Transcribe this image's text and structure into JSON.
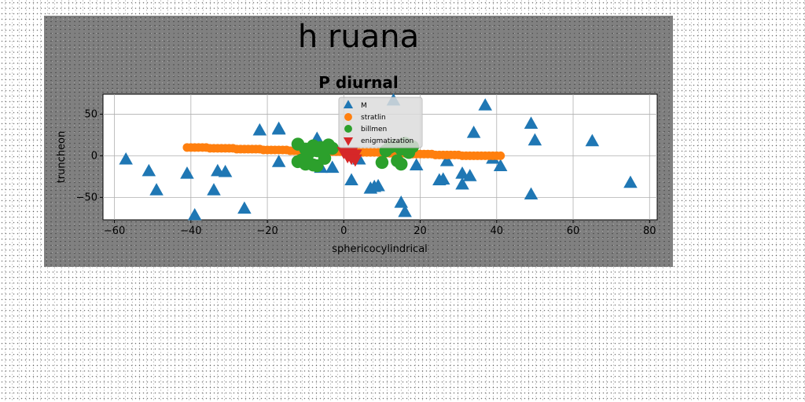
{
  "chart_data": {
    "type": "scatter",
    "suptitle": "h ruana",
    "title": "P  diurnal",
    "xlabel": "sphericocylindrical",
    "ylabel": "truncheon",
    "xlim": [
      -63,
      82
    ],
    "ylim": [
      -77,
      74
    ],
    "xticks": [
      -60,
      -40,
      -20,
      0,
      20,
      40,
      60,
      80
    ],
    "xtick_labels": [
      "−60",
      "−40",
      "−20",
      "0",
      "20",
      "40",
      "60",
      "80"
    ],
    "yticks": [
      -50,
      0,
      50
    ],
    "ytick_labels": [
      "−50",
      "0",
      "50"
    ],
    "grid": true,
    "legend_position": "top-center",
    "series": [
      {
        "name": "M",
        "marker": "triangle-up",
        "color": "#1f77b4",
        "x": [
          -57,
          -51,
          -49,
          -41,
          -39,
          -34,
          -33,
          -31,
          -26,
          -22,
          -17,
          -17,
          -17,
          -7,
          -6,
          -3,
          2,
          4,
          7,
          8,
          9,
          13,
          15,
          16,
          19,
          25,
          26,
          27,
          31,
          31,
          33,
          34,
          37,
          39,
          41,
          49,
          49,
          50,
          65,
          75
        ],
        "y": [
          -5,
          -19,
          -42,
          -22,
          -72,
          -42,
          -19,
          -20,
          -64,
          30,
          32,
          31,
          -8,
          20,
          -15,
          -15,
          -30,
          -5,
          -40,
          -38,
          -37,
          66,
          -57,
          -68,
          -12,
          -30,
          -29,
          -7,
          -22,
          -35,
          -25,
          27,
          60,
          -4,
          -13,
          -47,
          38,
          18,
          17,
          -33
        ]
      },
      {
        "name": "stratlin",
        "marker": "circle",
        "color": "#ff7f0e",
        "x": [
          -41,
          -40,
          -39,
          -38,
          -37,
          -36,
          -35,
          -34,
          -33,
          -32,
          -31,
          -30,
          -29,
          -28,
          -27,
          -26,
          -25,
          -24,
          -23,
          -22,
          -21,
          -20,
          -19,
          -18,
          -17,
          -16,
          -15,
          -14,
          -13,
          -12,
          -11,
          -10,
          -9,
          -8,
          -7,
          -6,
          -5,
          -4,
          -3,
          -2,
          -1,
          0,
          1,
          2,
          3,
          4,
          5,
          6,
          7,
          8,
          9,
          10,
          11,
          12,
          13,
          14,
          15,
          16,
          17,
          18,
          19,
          20,
          21,
          22,
          23,
          24,
          25,
          26,
          27,
          28,
          29,
          30,
          31,
          32,
          33,
          34,
          35,
          36,
          37,
          38,
          39,
          40,
          41
        ],
        "y": [
          10,
          10,
          10,
          10,
          10,
          10,
          9,
          9,
          9,
          9,
          9,
          9,
          9,
          8,
          8,
          8,
          8,
          8,
          8,
          8,
          7,
          7,
          7,
          7,
          7,
          7,
          7,
          6,
          6,
          6,
          6,
          6,
          6,
          6,
          5,
          5,
          5,
          5,
          5,
          5,
          5,
          5,
          5,
          5,
          4,
          4,
          4,
          4,
          4,
          4,
          4,
          3,
          3,
          3,
          3,
          3,
          3,
          3,
          2,
          2,
          2,
          2,
          2,
          2,
          2,
          1,
          1,
          1,
          1,
          1,
          1,
          1,
          0,
          0,
          0,
          0,
          0,
          0,
          0,
          0,
          0,
          0,
          0
        ]
      },
      {
        "name": "billmen",
        "marker": "circle",
        "color": "#2ca02c",
        "x": [
          -12,
          -12,
          -11,
          -10,
          -10,
          -9,
          -9,
          -8,
          -8,
          -7,
          -7,
          -6,
          -5,
          -5,
          -4,
          -3,
          10,
          11,
          12,
          13,
          14,
          15,
          15,
          16,
          17,
          18
        ],
        "y": [
          14,
          -7,
          -5,
          8,
          -10,
          4,
          -9,
          12,
          -11,
          6,
          -12,
          10,
          -3,
          7,
          13,
          9,
          -8,
          6,
          10,
          12,
          -6,
          8,
          -10,
          15,
          4,
          11
        ]
      },
      {
        "name": "enigmatization",
        "marker": "triangle-down",
        "color": "#d62728",
        "x": [
          0,
          1,
          1,
          2,
          2,
          3,
          3
        ],
        "y": [
          5,
          3,
          0,
          5,
          -2,
          2,
          -4
        ]
      }
    ]
  }
}
